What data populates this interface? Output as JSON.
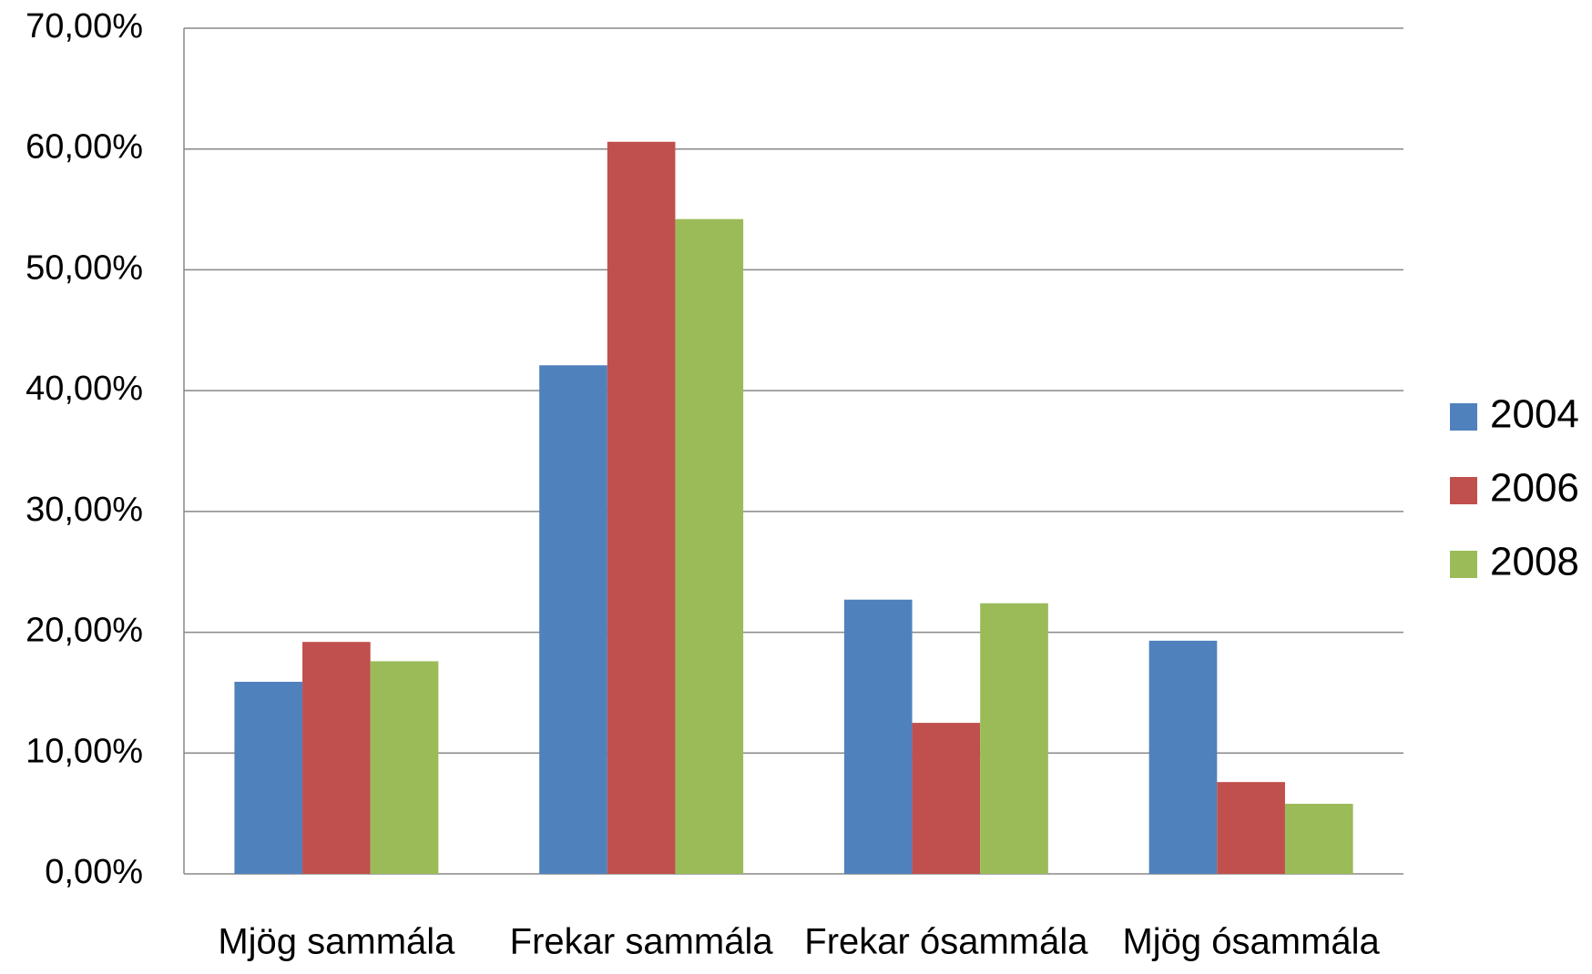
{
  "chart_data": {
    "type": "bar",
    "categories": [
      "Mjög sammála",
      "Frekar sammála",
      "Frekar ósammála",
      "Mjög ósammála"
    ],
    "series": [
      {
        "name": "2004",
        "color": "#4f81bd",
        "values": [
          15.9,
          42.1,
          22.7,
          19.3
        ]
      },
      {
        "name": "2006",
        "color": "#c0504d",
        "values": [
          19.2,
          60.6,
          12.5,
          7.6
        ]
      },
      {
        "name": "2008",
        "color": "#9bbb59",
        "values": [
          17.6,
          54.2,
          22.4,
          5.8
        ]
      }
    ],
    "ylim": [
      0,
      70
    ],
    "yticks": [
      {
        "value": 0,
        "label": "0,00%"
      },
      {
        "value": 10,
        "label": "10,00%"
      },
      {
        "value": 20,
        "label": "20,00%"
      },
      {
        "value": 30,
        "label": "30,00%"
      },
      {
        "value": 40,
        "label": "40,00%"
      },
      {
        "value": 50,
        "label": "50,00%"
      },
      {
        "value": 60,
        "label": "60,00%"
      },
      {
        "value": 70,
        "label": "70,00%"
      }
    ],
    "grid": true,
    "legend": "right"
  }
}
